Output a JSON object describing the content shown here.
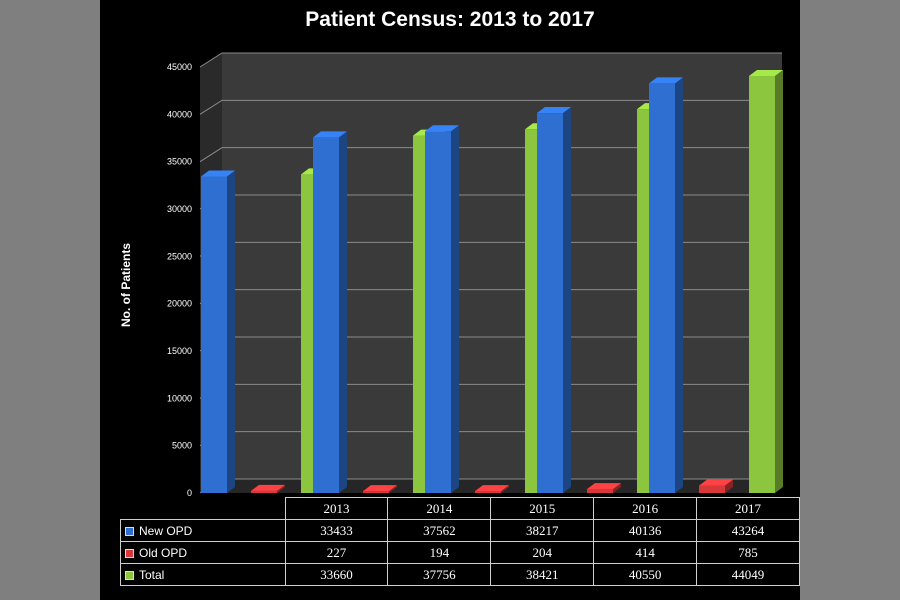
{
  "chart_data": {
    "type": "bar",
    "title": "Patient Census: 2013 to 2017",
    "ylabel": "No. of Patients",
    "xlabel": "",
    "categories": [
      "2013",
      "2014",
      "2015",
      "2016",
      "2017"
    ],
    "ylim": [
      0,
      45000
    ],
    "yticks": [
      0,
      5000,
      10000,
      15000,
      20000,
      25000,
      30000,
      35000,
      40000,
      45000
    ],
    "grid": true,
    "style": "3d-clustered-bar-with-data-table",
    "series": [
      {
        "name": "New OPD",
        "color": "#2e6fd1",
        "values": [
          33433,
          37562,
          38217,
          40136,
          43264
        ]
      },
      {
        "name": "Old OPD",
        "color": "#d9383a",
        "values": [
          227,
          194,
          204,
          414,
          785
        ]
      },
      {
        "name": "Total",
        "color": "#8cc63f",
        "values": [
          33660,
          37756,
          38421,
          40550,
          44049
        ]
      }
    ]
  },
  "colors": {
    "background_outer": "#7f7f7f",
    "background_panel": "#000000",
    "plot_wall": "#3a3a3a",
    "gridline": "#8a8a8a"
  }
}
